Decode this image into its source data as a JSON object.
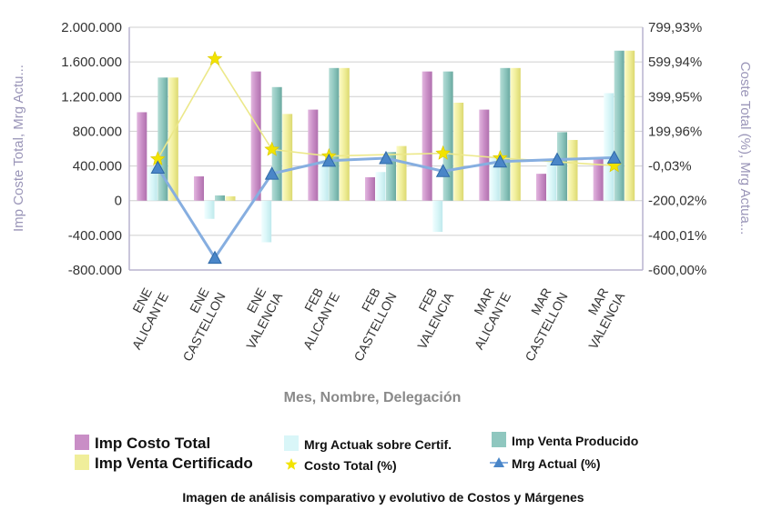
{
  "chart_data": {
    "type": "bar",
    "title": "",
    "xlabel": "Mes, Nombre, Delegación",
    "ylabel": "Imp Coste Total, Mrg Actu...",
    "y2label": "Coste Total (%), Mrg Actua...",
    "ylim": [
      -800000,
      2000000
    ],
    "y2lim": [
      -600.0,
      799.93
    ],
    "y_ticks": [
      "2.000.000",
      "1.600.000",
      "1.200.000",
      "800.000",
      "400.000",
      "0",
      "-400.000",
      "-800.000"
    ],
    "y2_ticks": [
      "799,93%",
      "599,94%",
      "399,95%",
      "199,96%",
      "-0,03%",
      "-200,02%",
      "-400,01%",
      "-600,00%"
    ],
    "grid": true,
    "legend_position": "bottom",
    "categories": [
      [
        "ENE",
        "ALICANTE"
      ],
      [
        "ENE",
        "CASTELLON"
      ],
      [
        "ENE",
        "VALENCIA"
      ],
      [
        "FEB",
        "ALICANTE"
      ],
      [
        "FEB",
        "CASTELLON"
      ],
      [
        "FEB",
        "VALENCIA"
      ],
      [
        "MAR",
        "ALICANTE"
      ],
      [
        "MAR",
        "CASTELLON"
      ],
      [
        "MAR",
        "VALENCIA"
      ]
    ],
    "series": [
      {
        "name": "Imp Costo Total",
        "kind": "bar",
        "axis": "left",
        "color": "#c98ec6",
        "values": [
          1020000,
          280000,
          1490000,
          1050000,
          270000,
          1490000,
          1050000,
          310000,
          480000
        ]
      },
      {
        "name": "Mrg Actuak sobre Certif.",
        "kind": "bar",
        "axis": "left",
        "color": "#d9f6f8",
        "values": [
          390000,
          -210000,
          -480000,
          470000,
          330000,
          -360000,
          490000,
          480000,
          1240000
        ]
      },
      {
        "name": "Imp Venta Producido",
        "kind": "bar",
        "axis": "left",
        "color": "#8fc7bf",
        "values": [
          1420000,
          60000,
          1310000,
          1530000,
          560000,
          1490000,
          1530000,
          790000,
          1730000
        ]
      },
      {
        "name": "Imp Venta Certificado",
        "kind": "bar",
        "axis": "left",
        "color": "#f0ee9a",
        "values": [
          1420000,
          50000,
          1000000,
          1530000,
          630000,
          1130000,
          1530000,
          700000,
          1730000
        ]
      },
      {
        "name": "Costo Total (%)",
        "kind": "line",
        "axis": "right",
        "color": "#ece88a",
        "marker": "star",
        "values": [
          40,
          618,
          95,
          57,
          null,
          73,
          46,
          null,
          2
        ]
      },
      {
        "name": "Mrg Actual (%)",
        "kind": "line",
        "axis": "right",
        "color": "#86aee0",
        "marker": "triangle",
        "values": [
          -10,
          -530,
          -45,
          30,
          45,
          -30,
          25,
          37,
          48
        ]
      }
    ]
  },
  "legend": [
    {
      "label": "Imp Costo Total",
      "color": "#c98ec6",
      "kind": "box",
      "size": "big"
    },
    {
      "label": "Imp Venta Certificado",
      "color": "#f0ee9a",
      "kind": "box",
      "size": "big"
    },
    {
      "label": "Mrg Actuak sobre Certif.",
      "color": "#d9f6f8",
      "kind": "box",
      "size": "small"
    },
    {
      "label": "Costo Total (%)",
      "color": "#f2e300",
      "kind": "star",
      "size": "small"
    },
    {
      "label": "Imp Venta Producido",
      "color": "#8fc7bf",
      "kind": "box",
      "size": "small"
    },
    {
      "label": "Mrg Actual (%)",
      "color": "#4a86c8",
      "kind": "triangle",
      "size": "small"
    }
  ],
  "caption": "Imagen de análisis comparativo y evolutivo de Costos y Márgenes",
  "colors": {
    "grid": "#cfcfcf",
    "axis": "#b8b4cf"
  }
}
